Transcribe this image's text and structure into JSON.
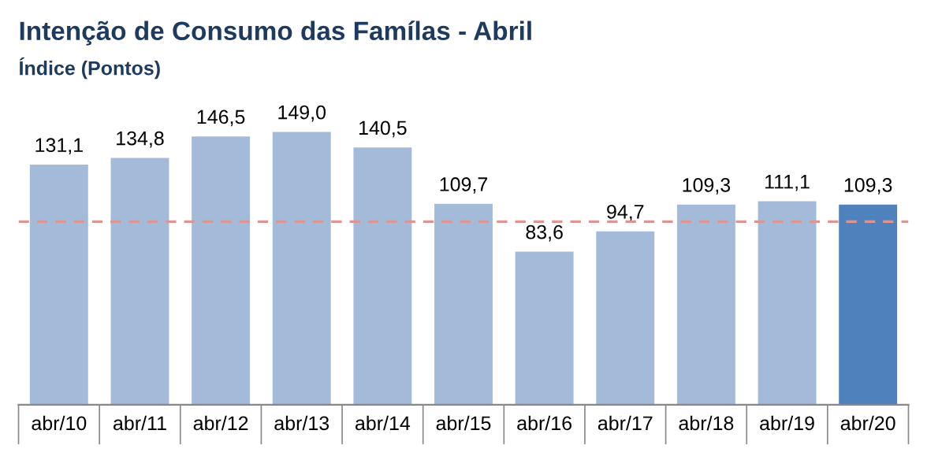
{
  "chart_data": {
    "type": "bar",
    "title": "Intenção de Consumo das Famílas - Abril",
    "subtitle": "Índice (Pontos)",
    "categories": [
      "abr/10",
      "abr/11",
      "abr/12",
      "abr/13",
      "abr/14",
      "abr/15",
      "abr/16",
      "abr/17",
      "abr/18",
      "abr/19",
      "abr/20"
    ],
    "values": [
      131.1,
      134.8,
      146.5,
      149.0,
      140.5,
      109.7,
      83.6,
      94.7,
      109.3,
      111.1,
      109.3
    ],
    "value_labels": [
      "131,1",
      "134,8",
      "146,5",
      "149,0",
      "140,5",
      "109,7",
      "83,6",
      "94,7",
      "109,3",
      "111,1",
      "109,3"
    ],
    "colors": [
      "#a3bad8",
      "#a3bad8",
      "#a3bad8",
      "#a3bad8",
      "#a3bad8",
      "#a3bad8",
      "#a3bad8",
      "#a3bad8",
      "#a3bad8",
      "#a3bad8",
      "#4f81bd"
    ],
    "ref_lines": [
      {
        "axis": "y",
        "value": 100,
        "color": "#d99694",
        "line_style": "dashed"
      }
    ],
    "grid": false,
    "legend": false
  }
}
